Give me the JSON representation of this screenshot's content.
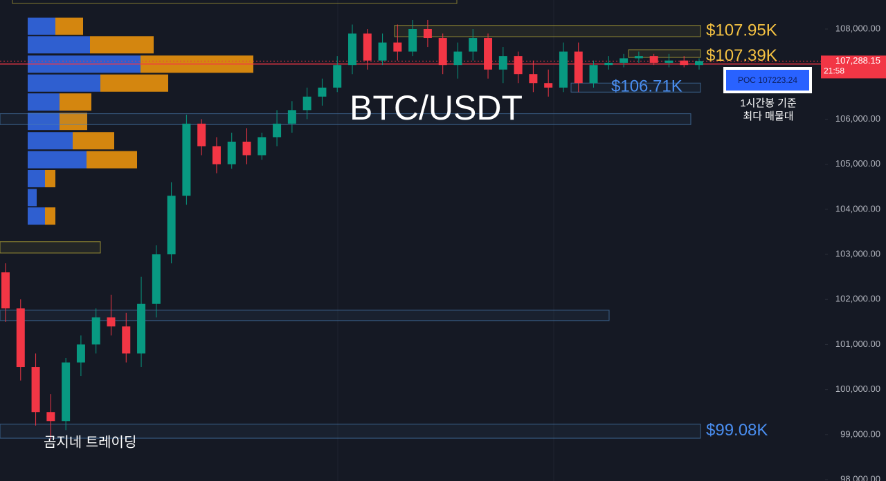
{
  "chart_data": {
    "type": "candlestick",
    "title": "BTC/USDT",
    "watermark": "곰지네 트레이딩",
    "ylim": [
      97970,
      108644
    ],
    "yticks": [
      {
        "value": 108000,
        "label": "108,000.00"
      },
      {
        "value": 107000,
        "label": "107,000.00"
      },
      {
        "value": 106000,
        "label": "106,000.00"
      },
      {
        "value": 105000,
        "label": "105,000.00"
      },
      {
        "value": 104000,
        "label": "104,000.00"
      },
      {
        "value": 103000,
        "label": "103,000.00"
      },
      {
        "value": 102000,
        "label": "102,000.00"
      },
      {
        "value": 101000,
        "label": "101,000.00"
      },
      {
        "value": 100000,
        "label": "100,000.00"
      },
      {
        "value": 99000,
        "label": "99,000.00"
      },
      {
        "value": 98000,
        "label": "98,000.00"
      }
    ],
    "up_color": "#089981",
    "down_color": "#f23645",
    "open": [
      102600,
      101800,
      100500,
      99500,
      99300,
      100600,
      101000,
      101600,
      101400,
      100800,
      101900,
      103000,
      104300,
      105900,
      105400,
      105000,
      105500,
      105200,
      105600,
      105900,
      106200,
      106500,
      106700,
      107200,
      107900,
      107300,
      107700,
      107500,
      108000,
      107800,
      107200,
      107500,
      107800,
      107100,
      107400,
      107000,
      106800,
      106700,
      107500,
      106800,
      107200,
      107250,
      107350,
      107400,
      107250,
      107300,
      107200
    ],
    "high": [
      102800,
      102000,
      100800,
      99900,
      100700,
      101200,
      101800,
      102100,
      101700,
      102500,
      103200,
      104600,
      106100,
      106000,
      105600,
      105700,
      105800,
      105700,
      106200,
      106400,
      106700,
      106900,
      107400,
      108100,
      108000,
      107900,
      108100,
      108200,
      108200,
      107900,
      107700,
      108000,
      107900,
      107600,
      107500,
      107300,
      107100,
      107700,
      107700,
      107300,
      107400,
      107450,
      107500,
      107450,
      107450,
      107400,
      107350
    ],
    "low": [
      101500,
      100200,
      99200,
      98900,
      99100,
      100300,
      100800,
      101200,
      100600,
      100500,
      101600,
      102800,
      104100,
      105200,
      104800,
      104900,
      105000,
      105100,
      105400,
      105700,
      106000,
      106300,
      106600,
      107000,
      107100,
      107200,
      107300,
      107400,
      107600,
      107000,
      106900,
      107300,
      106900,
      106800,
      106800,
      106600,
      106500,
      106600,
      106600,
      106700,
      107100,
      107150,
      107250,
      107200,
      107150,
      107150,
      107100
    ],
    "close": [
      101800,
      100500,
      99500,
      99300,
      100600,
      101000,
      101600,
      101400,
      100800,
      101900,
      103000,
      104300,
      105900,
      105400,
      105000,
      105500,
      105200,
      105600,
      105900,
      106200,
      106500,
      106700,
      107200,
      107900,
      107300,
      107700,
      107500,
      108000,
      107800,
      107200,
      107500,
      107800,
      107100,
      107400,
      107000,
      106800,
      106700,
      107500,
      106800,
      107200,
      107250,
      107350,
      107400,
      107250,
      107300,
      107200,
      107290
    ],
    "last_price": {
      "value": 107288.15,
      "label": "107,288.15",
      "time": "21:58"
    },
    "volume_profile": {
      "levels": [
        108060,
        107650,
        107220,
        106800,
        106380,
        105950,
        105520,
        105100,
        104680,
        104260,
        103850
      ],
      "buy": [
        40,
        90,
        163,
        105,
        46,
        46,
        65,
        85,
        25,
        13,
        25
      ],
      "sell": [
        40,
        92,
        163,
        98,
        46,
        40,
        60,
        73,
        15,
        0,
        15
      ],
      "buy_color": "#2f5fd0",
      "sell_color": "#d4860f"
    },
    "poc": {
      "value": 107223.24,
      "text": "POC  107223.24",
      "note": [
        "1시간봉 기준",
        "최다 매물대"
      ]
    },
    "zones": [
      {
        "low": 107830,
        "high": 108080,
        "color": "#c9b93a",
        "value": 107950,
        "label": "$107.95K"
      },
      {
        "low": 107370,
        "high": 107540,
        "color": "#c9b93a",
        "value": 107390,
        "label": "$107.39K"
      },
      {
        "low": 106600,
        "high": 106800,
        "color": "#4a7fb5",
        "value": 106710,
        "label": "$106.71K"
      },
      {
        "low": 105880,
        "high": 106120,
        "color": "#4a7fb5"
      },
      {
        "low": 103030,
        "high": 103280,
        "color": "#c9b93a"
      },
      {
        "low": 101530,
        "high": 101760,
        "color": "#4a7fb5"
      },
      {
        "low": 98920,
        "high": 99230,
        "color": "#4a7fb5",
        "value": 99080,
        "label": "$99.08K"
      }
    ]
  }
}
